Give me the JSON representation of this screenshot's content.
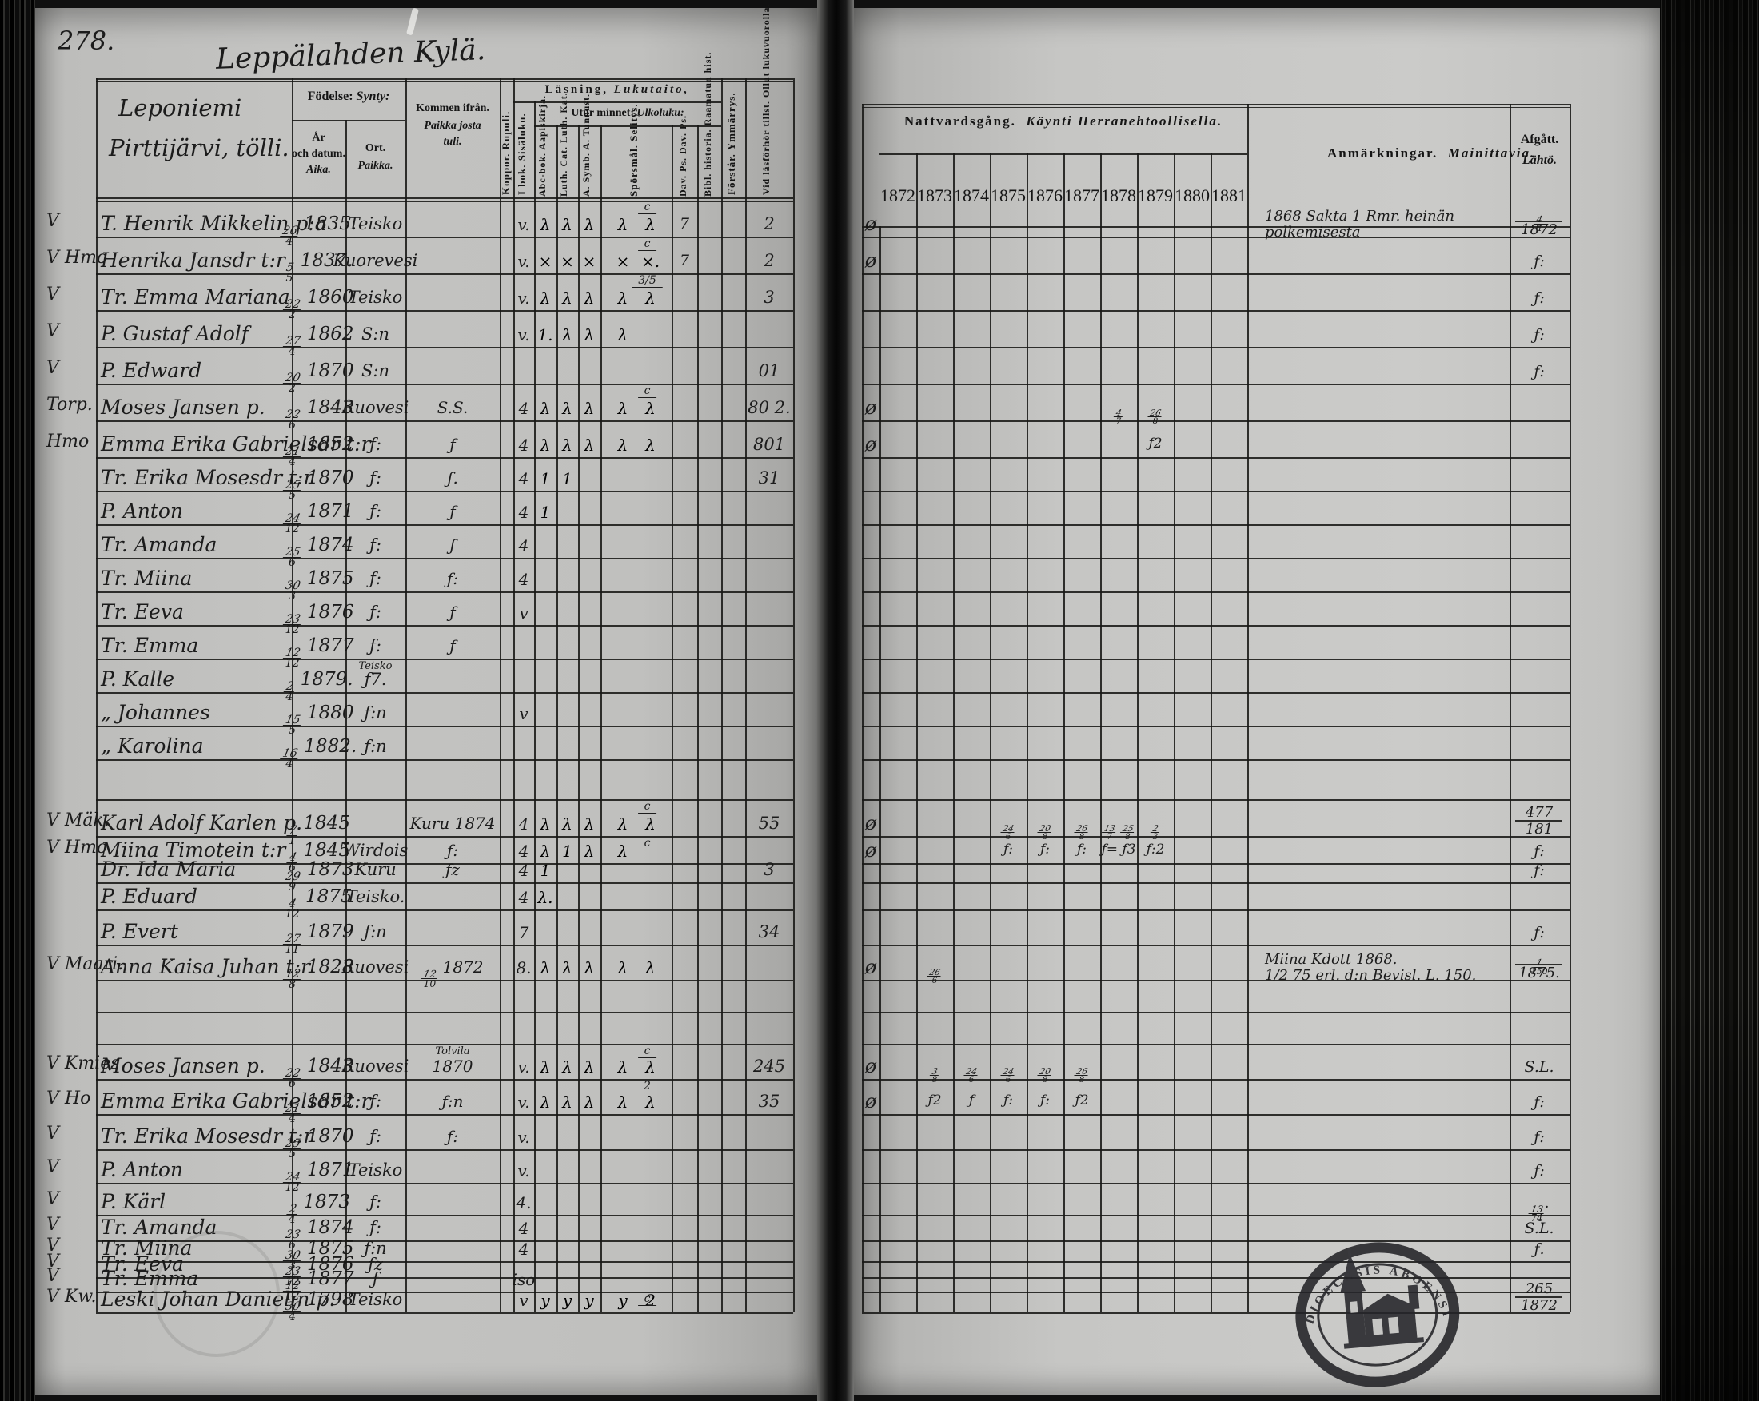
{
  "page_number": "278.",
  "page_title_handwritten": "Leppälahden Kylä.",
  "left_table": {
    "name_header_line1": "Leponiemi",
    "name_header_line2": "Pirttijärvi, tölli.",
    "headers": {
      "birth_group_sv": "Födelse:",
      "birth_group_fi": "Synty:",
      "birth_date": [
        "År",
        "och datum.",
        "Aika."
      ],
      "birth_place": [
        "Ort.",
        "Paikka."
      ],
      "kommen": [
        "Kommen ifrån.",
        "Paikka josta",
        "tuli."
      ],
      "koppor": "Koppor. Rupuli.",
      "lasning_sv": "Läsning,",
      "lasning_fi": "Lukutaito,",
      "ibok": "I bok. Sisäluku.",
      "utur_sv": "Utur minnet:",
      "utur_fi": "Ulkoluku:",
      "abc": "Abc-bok. Aapiskirja.",
      "cat": "Luth. Cat. Luth. Kat.",
      "symb": "A. Symb. A. Tunnust.",
      "spors": "Spörsmål. Selitys.",
      "davps": "Dav. Ps. Dav. Ps.",
      "bibl": "Bibl. historia. Raamatun hist.",
      "forstar": "Förstår. Ymmärrys.",
      "vidlas": "Vid läsförhör tillst. Ollut lukuvuorolla."
    }
  },
  "right_table": {
    "header_sv": "Nattvardsgång.",
    "header_fi": "Käynti Herranehtoollisella.",
    "years": [
      "1872",
      "1873",
      "1874",
      "1875",
      "1876",
      "1877",
      "1878",
      "1879",
      "1880",
      "1881"
    ],
    "anm_header_sv": "Anmärkningar.",
    "anm_header_fi": "Mainittavia.",
    "afg_header_sv": "Afgått.",
    "afg_header_fi": "Lähtö."
  },
  "stamp": {
    "ring_text": "DIOECESIS ABOENSIS"
  },
  "rows": [
    {
      "h": 46,
      "pre": "V",
      "name": "T. Henrik Mikkelin p:a",
      "birth": "26/4 1835.",
      "ort": "Teisko",
      "ibok": "v.",
      "m": [
        "λ",
        "λ",
        "λ",
        "λ"
      ],
      "spors": "λ",
      "c": "c",
      "dav": "7",
      "num": "2",
      "comm": "ø",
      "anm1": "1868 Sakta 1 Rmr. heinän",
      "anm2": "polkemisesta",
      "afg1": "4/4",
      "afg2": "1872"
    },
    {
      "h": 46,
      "pre": "V Hmo",
      "name": "Henrika Jansdr t:r",
      "birth": "5/5 1837.",
      "ort": "Kuorevesi",
      "ibok": "v.",
      "m": [
        "×",
        "×",
        "×",
        "×"
      ],
      "spors": "×.",
      "c": "c",
      "dav": "7",
      "num": "2",
      "comm": "ø",
      "afg1": "ƒ:"
    },
    {
      "h": 46,
      "pre": "V",
      "name": "Tr. Emma Mariana",
      "birth": "22/2 1860",
      "ort": "Teisko",
      "ibok": "v.",
      "m": [
        "λ",
        "λ",
        "λ",
        "λ"
      ],
      "spors": "λ",
      "c": "3/5",
      "num": "3",
      "afg1": "ƒ:"
    },
    {
      "h": 46,
      "pre": "V",
      "name": "P. Gustaf Adolf",
      "birth": "27/4 1862",
      "ort": "S:n",
      "ibok": "v.",
      "m": [
        "1.",
        "λ",
        "λ",
        "λ"
      ],
      "afg1": "ƒ:"
    },
    {
      "h": 46,
      "pre": "V",
      "name": "P. Edward",
      "birth": "20/2 1870",
      "ort": "S:n",
      "num": "01",
      "afg1": "ƒ:"
    },
    {
      "h": 46,
      "pre": "Torp.",
      "name": "Moses Jansen p.",
      "birth": "22/6 1843",
      "ort": "Ruovesi",
      "kommen": "S.S.",
      "ibok": "4",
      "m": [
        "λ",
        "λ",
        "λ",
        "λ"
      ],
      "spors": "λ",
      "c": "c",
      "num": "80 2.",
      "comm": "ø",
      "y": {
        "1878": "4/7",
        "1879": "26/8"
      }
    },
    {
      "h": 46,
      "pre": "Hmo",
      "name": "Emma Erika Gabrielsdr t:r",
      "birth": "21/4 1852",
      "ort": "ƒ:",
      "kommen": "ƒ",
      "ibok": "4",
      "m": [
        "λ",
        "λ",
        "λ",
        "λ"
      ],
      "spors": "λ",
      "num": "801",
      "comm": "ø",
      "y": {
        "1879": "ƒ2"
      }
    },
    {
      "h": 42,
      "pre": "",
      "name": "Tr. Erika Mosesdr t:r",
      "birth": "25/5 1870",
      "ort": "ƒ:",
      "kommen": "ƒ.",
      "ibok": "4",
      "m": [
        "1",
        "1",
        "",
        ""
      ],
      "num": "31"
    },
    {
      "h": 42,
      "pre": "",
      "name": "P. Anton",
      "birth": "24/12 1871",
      "ort": "ƒ:",
      "kommen": "ƒ",
      "ibok": "4",
      "m": [
        "1",
        "",
        "",
        ""
      ]
    },
    {
      "h": 42,
      "pre": "",
      "name": "Tr. Amanda",
      "birth": "25/6 1874",
      "ort": "ƒ:",
      "kommen": "ƒ",
      "ibok": "4"
    },
    {
      "h": 42,
      "pre": "",
      "name": "Tr. Miina",
      "birth": "30/3 1875",
      "ort": "ƒ:",
      "kommen": "ƒ:",
      "ibok": "4"
    },
    {
      "h": 42,
      "pre": "",
      "name": "Tr. Eeva",
      "birth": "23/12 1876",
      "ort": "ƒ:",
      "kommen": "ƒ",
      "ibok": "v"
    },
    {
      "h": 42,
      "pre": "",
      "name": "Tr. Emma",
      "birth": "12/12 1877",
      "ort": "ƒ:",
      "kommen": "ƒ"
    },
    {
      "h": 42,
      "pre": "",
      "name": "P. Kalle",
      "birth": "2/4 1879.",
      "ort": "ƒ7.",
      "ort_note": "Teisko"
    },
    {
      "h": 42,
      "pre": "",
      "name": "„ Johannes",
      "birth": "15/5 1880",
      "ort": "ƒ:n",
      "ibok": "v"
    },
    {
      "h": 42,
      "pre": "",
      "name": "„ Karolina",
      "birth": "16/4 1882.",
      "ort": "ƒ:n"
    },
    {
      "h": 50
    },
    {
      "h": 46,
      "pre": "V Mäk.",
      "name": "Karl Adolf Karlen p.",
      "birth": "7/1 1845",
      "kommen": "Kuru 1874",
      "ibok": "4",
      "m": [
        "λ",
        "λ",
        "λ",
        "λ"
      ],
      "spors": "λ",
      "c": "c",
      "num": "55",
      "comm": "ø",
      "y": {
        "1875": "24/6",
        "1876": "20/8",
        "1877": "26/8",
        "1878": "13/7 25/8",
        "1879": "2/3"
      },
      "afg1": "477",
      "afg2": "181"
    },
    {
      "h": 34,
      "pre": "V Hmo",
      "name": "Miina Timotein t:r",
      "birth": "4/6 1845",
      "ort": "Wirdois",
      "kommen": "ƒ:",
      "ibok": "4",
      "m": [
        "λ",
        "1",
        "λ",
        "λ"
      ],
      "c": "c",
      "comm": "ø",
      "y": {
        "1875": "ƒ:",
        "1876": "ƒ:",
        "1877": "ƒ:",
        "1878": "ƒ= ƒ3",
        "1879": "ƒ:2"
      },
      "afg1": "ƒ:"
    },
    {
      "h": 24,
      "pre": "",
      "name": "Dr. Ida Maria",
      "birth": "29/9 1873",
      "ort": "Kuru",
      "kommen": "ƒz",
      "ibok": "4",
      "m": [
        "1",
        "",
        "",
        ""
      ],
      "num": "3",
      "afg1": "ƒ:"
    },
    {
      "h": 34,
      "pre": "",
      "name": "P. Eduard",
      "birth": "4/12 1875",
      "ort": "Teisko.",
      "ibok": "4",
      "m": [
        "λ.",
        "",
        "",
        ""
      ]
    },
    {
      "h": 44,
      "pre": "",
      "name": "P. Evert",
      "birth": "27/11 1879",
      "ort": "ƒ:n",
      "ibok": "7",
      "num": "34",
      "afg1": "ƒ:"
    },
    {
      "h": 44,
      "pre": "V Maari.",
      "name": "Anna Kaisa Juhan t:r",
      "birth": "12/8 1828",
      "ort": "Ruovesi",
      "kommen": "12/10 1872",
      "ibok": "8.",
      "m": [
        "λ",
        "λ",
        "λ",
        "λ"
      ],
      "spors": "λ",
      "comm": "ø",
      "y": {
        "1873": "26/6"
      },
      "anm1": "Miina Kdott 1868.",
      "anm2": "1/2 75 erl. d:n Bevisl. L. 150.",
      "afg1": "1/150",
      "afg2": "1875."
    },
    {
      "h": 40
    },
    {
      "h": 40
    },
    {
      "h": 44,
      "pre": "V Kmies",
      "name": "Moses Jansen p.",
      "birth": "22/6 1843",
      "ort": "Ruovesi",
      "kommen": "1870",
      "kommen_note": "Tolvila",
      "ibok": "v.",
      "m": [
        "λ",
        "λ",
        "λ",
        "λ"
      ],
      "spors": "λ",
      "c": "c",
      "num": "245",
      "comm": "ø",
      "y": {
        "1873": "3/8",
        "1874": "24/6",
        "1875": "24/6",
        "1876": "20/8",
        "1877": "26/8"
      },
      "afg1": "S.L."
    },
    {
      "h": 44,
      "pre": "V Ho",
      "name": "Emma Erika Gabrielsdr t:r",
      "birth": "21/4 1852",
      "ort": "ƒ:",
      "kommen": "ƒ:n",
      "ibok": "v.",
      "m": [
        "λ",
        "λ",
        "λ",
        "λ"
      ],
      "spors": "λ",
      "c": "2",
      "num": "35",
      "comm": "ø",
      "y": {
        "1873": "ƒ2",
        "1874": "ƒ",
        "1875": "ƒ:",
        "1876": "ƒ:",
        "1877": "ƒ2"
      },
      "afg1": "ƒ:"
    },
    {
      "h": 44,
      "pre": "V",
      "name": "Tr. Erika Mosesdr t:r",
      "birth": "25/5 1870",
      "ort": "ƒ:",
      "kommen": "ƒ:",
      "ibok": "v.",
      "afg1": "ƒ:"
    },
    {
      "h": 42,
      "pre": "V",
      "name": "P. Anton",
      "birth": "24/12 1871",
      "ort": "Teisko",
      "ibok": "v.",
      "afg1": "ƒ:"
    },
    {
      "h": 40,
      "pre": "V",
      "name": "P. Kärl",
      "birth": "2/4 1873",
      "ort": "ƒ:",
      "ibok": "4.",
      "afg1": "13/74."
    },
    {
      "h": 32,
      "pre": "V",
      "name": "Tr. Amanda",
      "birth": "23/6 1874",
      "ort": "ƒ:",
      "ibok": "4",
      "afg1": "S.L."
    },
    {
      "h": 26,
      "pre": "V",
      "name": "Tr. Miina",
      "birth": "30/3 1875",
      "ort": "ƒ:n",
      "ibok": "4",
      "afg1": "ƒ."
    },
    {
      "h": 20,
      "pre": "V",
      "name": "Tr. Eeva",
      "birth": "23/12 1876",
      "ort": "ƒz"
    },
    {
      "h": 18,
      "pre": "V",
      "name": "Tr. Emma",
      "birth": "12/12 1877",
      "ort": "ƒ",
      "ibok": "iso"
    },
    {
      "h": 26,
      "pre": "V Kw.",
      "name": "Leski Johan Danielin p.",
      "birth": "30/4 1798",
      "ort": "Teisko",
      "ibok": "v",
      "m": [
        "y",
        "y",
        "y",
        "y"
      ],
      "spors": "2",
      "c": "c",
      "afg1": "265",
      "afg2": "1872"
    }
  ]
}
